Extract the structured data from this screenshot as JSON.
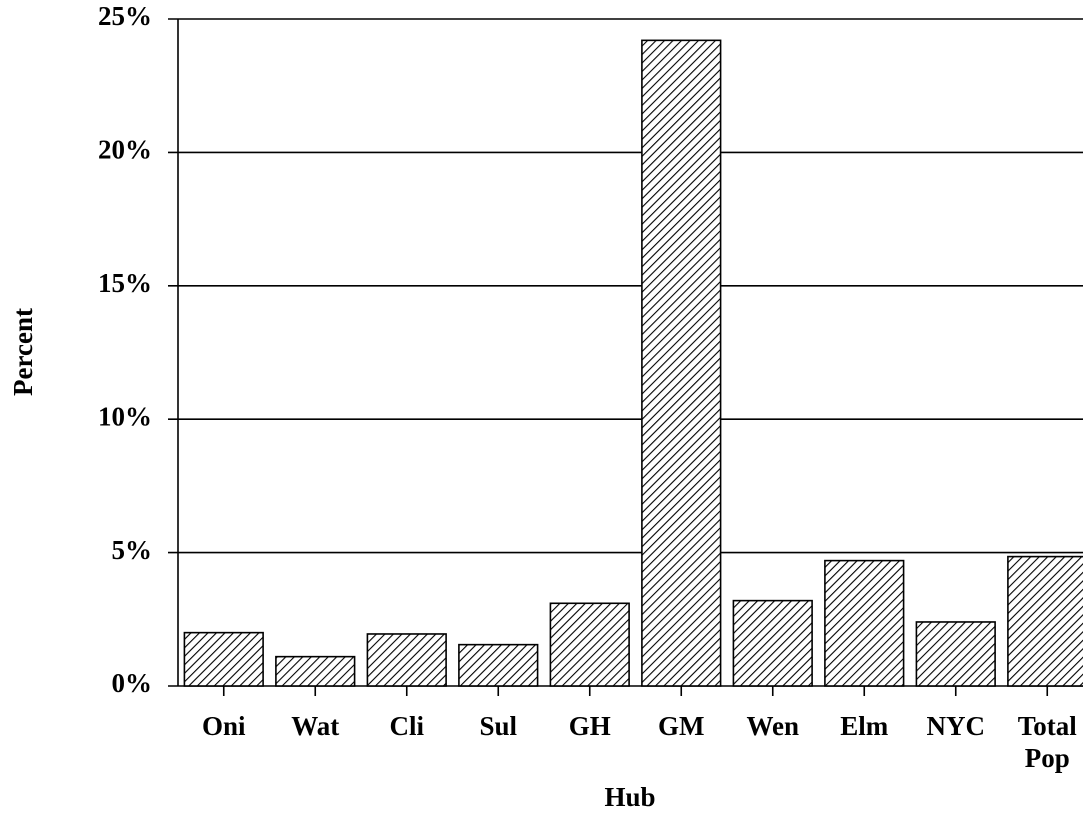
{
  "chart_data": {
    "type": "bar",
    "x_label": "Hub",
    "y_label": "Percent",
    "categories": [
      "Oni",
      "Wat",
      "Cli",
      "Sul",
      "GH",
      "GM",
      "Wen",
      "Elm",
      "NYC",
      "Total Pop"
    ],
    "values": [
      2.0,
      1.1,
      1.95,
      1.55,
      3.1,
      24.2,
      3.2,
      4.7,
      2.4,
      4.85
    ],
    "color": "#000000",
    "ylim": [
      0,
      25
    ],
    "yticks": [
      {
        "value": 0,
        "label": "0%"
      },
      {
        "value": 5,
        "label": "5%"
      },
      {
        "value": 10,
        "label": "10%"
      },
      {
        "value": 15,
        "label": "15%"
      },
      {
        "value": 20,
        "label": "20%"
      },
      {
        "value": 25,
        "label": "25%"
      }
    ],
    "grid": true
  }
}
